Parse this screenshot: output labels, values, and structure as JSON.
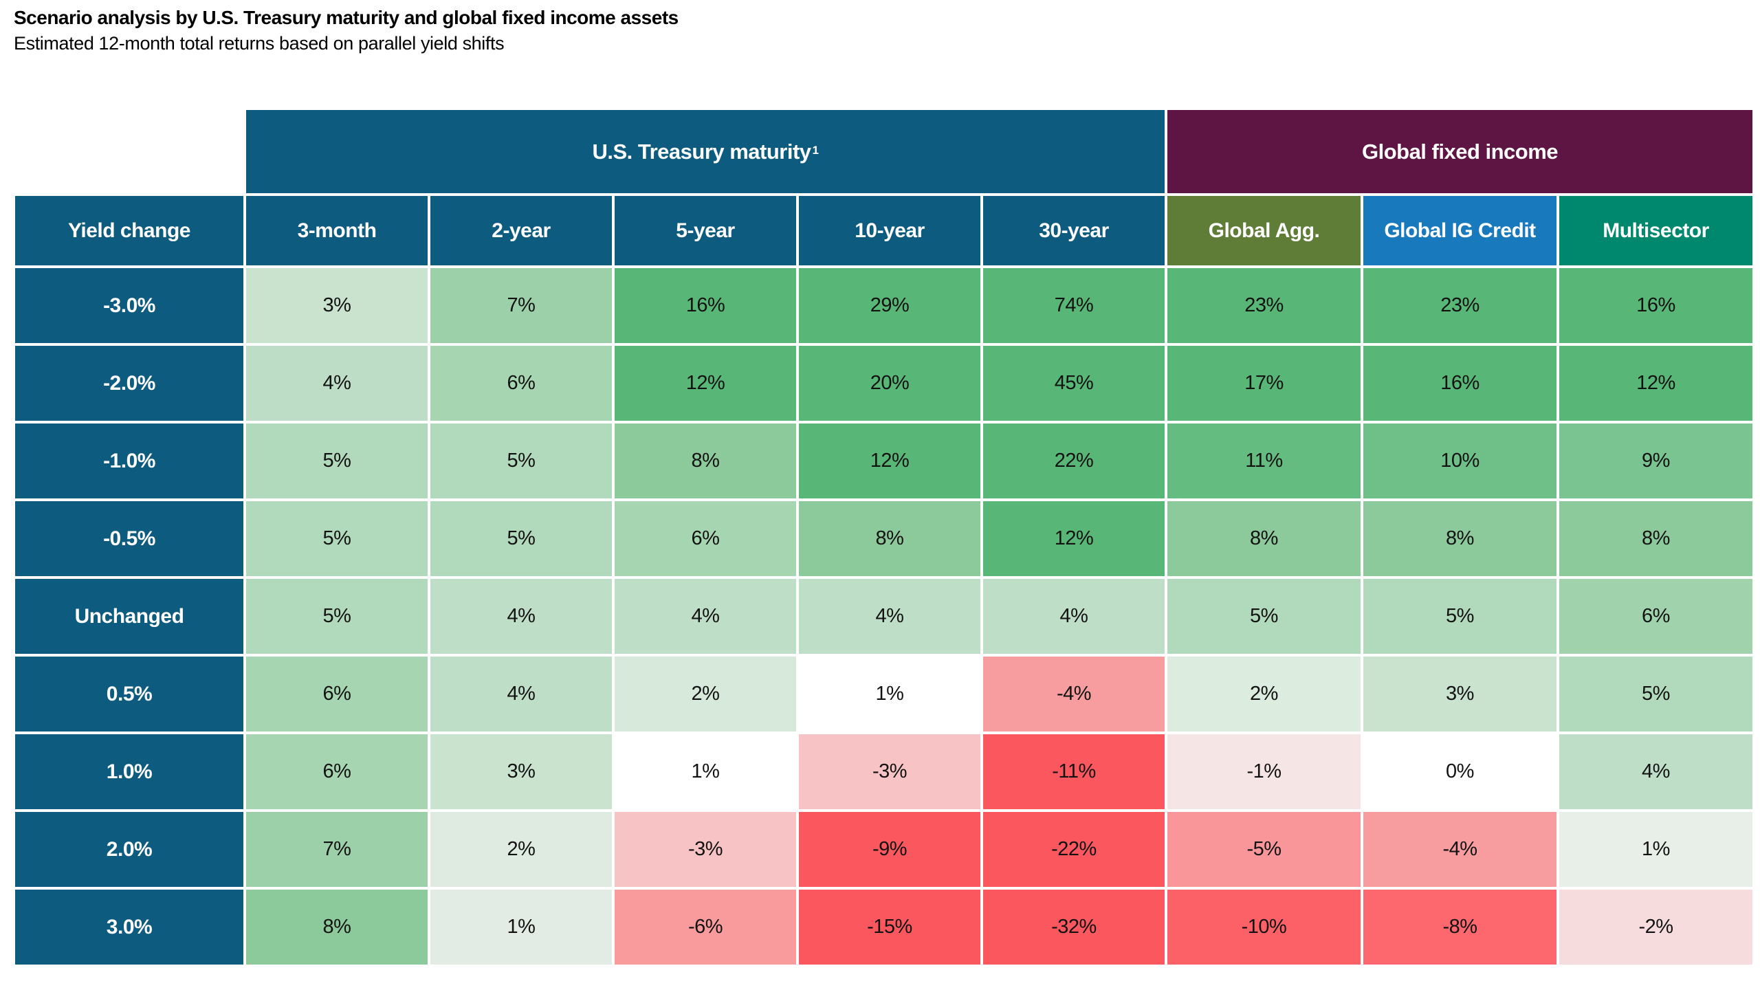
{
  "title": "Scenario analysis by U.S. Treasury maturity and global fixed income assets",
  "subtitle": "Estimated 12-month total returns based on parallel yield shifts",
  "chart_data": {
    "type": "heatmap",
    "title": "Scenario analysis by U.S. Treasury maturity and global fixed income assets",
    "subtitle": "Estimated 12-month total returns based on parallel yield shifts",
    "value_format": "percent",
    "corner_label": "Yield change",
    "row_header_color": "#0d5b7e",
    "group_headers": [
      {
        "label": "U.S. Treasury maturity",
        "footnote_marker": "1",
        "color": "#0d5b7e",
        "span": 5
      },
      {
        "label": "Global fixed income",
        "footnote_marker": "",
        "color": "#5e1543",
        "span": 3
      }
    ],
    "columns": [
      {
        "label": "3-month",
        "color": "#0d5b7e"
      },
      {
        "label": "2-year",
        "color": "#0d5b7e"
      },
      {
        "label": "5-year",
        "color": "#0d5b7e"
      },
      {
        "label": "10-year",
        "color": "#0d5b7e"
      },
      {
        "label": "30-year",
        "color": "#0d5b7e"
      },
      {
        "label": "Global Agg.",
        "color": "#5f7d37"
      },
      {
        "label": "Global IG Credit",
        "color": "#1879bd"
      },
      {
        "label": "Multisector",
        "color": "#00886f"
      }
    ],
    "rows": [
      {
        "label": "-3.0%",
        "values": [
          3,
          7,
          16,
          29,
          74,
          23,
          23,
          16
        ],
        "colors": [
          "#c9e3cf",
          "#9cd0a9",
          "#58b677",
          "#58b677",
          "#58b677",
          "#58b677",
          "#58b677",
          "#58b677"
        ]
      },
      {
        "label": "-2.0%",
        "values": [
          4,
          6,
          12,
          20,
          45,
          17,
          16,
          12
        ],
        "colors": [
          "#bdddc6",
          "#a6d5b1",
          "#58b677",
          "#58b677",
          "#58b677",
          "#58b677",
          "#58b677",
          "#58b677"
        ]
      },
      {
        "label": "-1.0%",
        "values": [
          5,
          5,
          8,
          12,
          22,
          11,
          10,
          9
        ],
        "colors": [
          "#b1d9bb",
          "#b1d9bb",
          "#8cca9b",
          "#58b677",
          "#58b677",
          "#65bc80",
          "#6ec088",
          "#79c490"
        ]
      },
      {
        "label": "-0.5%",
        "values": [
          5,
          5,
          6,
          8,
          12,
          8,
          8,
          8
        ],
        "colors": [
          "#b1d9bb",
          "#b1d9bb",
          "#a6d5b1",
          "#8cca9b",
          "#58b677",
          "#8cca9b",
          "#8cca9b",
          "#8cca9b"
        ]
      },
      {
        "label": "Unchanged",
        "values": [
          5,
          4,
          4,
          4,
          4,
          5,
          5,
          6
        ],
        "colors": [
          "#b1d9bb",
          "#bfdec7",
          "#bfdec7",
          "#bfdec7",
          "#bfdec7",
          "#b1d9bb",
          "#b1d9bb",
          "#a0d2ac"
        ]
      },
      {
        "label": "0.5%",
        "values": [
          6,
          4,
          2,
          1,
          -4,
          2,
          3,
          5
        ],
        "colors": [
          "#a6d5b1",
          "#bfdec7",
          "#d6e9da",
          "#ffffff",
          "#f79da0",
          "#dcecdf",
          "#c9e3cf",
          "#b1d9bb"
        ]
      },
      {
        "label": "1.0%",
        "values": [
          6,
          3,
          1,
          -3,
          -11,
          -1,
          0,
          4
        ],
        "colors": [
          "#a6d5b1",
          "#c9e3cf",
          "#ffffff",
          "#f8c3c5",
          "#fb575e",
          "#f5e6e5",
          "#ffffff",
          "#bfdec7"
        ]
      },
      {
        "label": "2.0%",
        "values": [
          7,
          2,
          -3,
          -9,
          -22,
          -5,
          -4,
          1
        ],
        "colors": [
          "#9cd0a9",
          "#dfebe1",
          "#f8c3c5",
          "#fb575e",
          "#fb575e",
          "#f8969a",
          "#f79da0",
          "#e7efe8"
        ]
      },
      {
        "label": "3.0%",
        "values": [
          8,
          1,
          -6,
          -15,
          -32,
          -10,
          -8,
          -2
        ],
        "colors": [
          "#8cca9b",
          "#e3ece4",
          "#f99a9d",
          "#fb575e",
          "#fb575e",
          "#fc6167",
          "#fc686d",
          "#f6dcdc"
        ]
      }
    ]
  }
}
